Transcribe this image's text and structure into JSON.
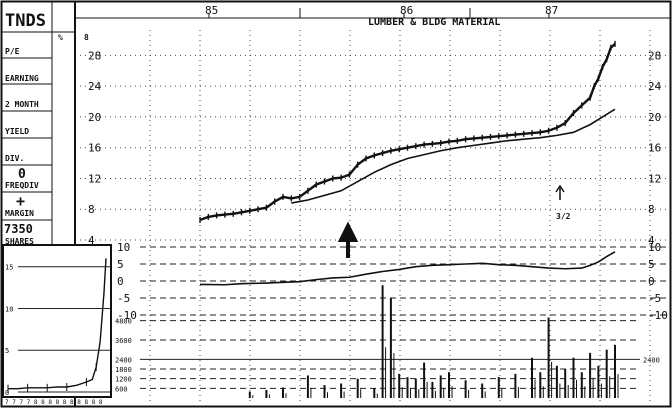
{
  "chart_data": {
    "type": "line",
    "ticker": "TNDS",
    "group": "LUMBER & BLDG MATERIAL",
    "x_years": [
      "85",
      "86",
      "87"
    ],
    "side_labels": {
      "pe": "P/E",
      "earning": "EARNING",
      "month": "2 MONTH",
      "yield": "YIELD",
      "div": "DIV.",
      "div_value": "0",
      "freqdiv": "FREQDIV",
      "plus": "+",
      "margin": "MARGIN",
      "shares_value": "7350",
      "shares": "SHARES",
      "percent_sign": "%"
    },
    "price_axis": {
      "min": 4,
      "max": 30,
      "ticks": [
        "28",
        "24",
        "20",
        "16",
        "12",
        "8",
        "4"
      ],
      "left_top": "8"
    },
    "rs_axis": {
      "ticks": [
        "10",
        "5",
        "0",
        "-5",
        "-10"
      ]
    },
    "volume_axis": {
      "ticks": [
        "4800",
        "3600",
        "2400",
        "1800",
        "1200",
        "600"
      ],
      "right_label": "2400"
    },
    "inset_axis": {
      "ticks": [
        "15",
        "10",
        "5",
        "0"
      ],
      "x_label": "7 7 7 7 8 8 8 8 8 8 8 8 8 8"
    },
    "annotation_split": "3/2",
    "price_series": {
      "name": "",
      "x": [
        0,
        2,
        4,
        6,
        8,
        10,
        12,
        14,
        16,
        18,
        20,
        22,
        24,
        26,
        28,
        30,
        32,
        34,
        36,
        38,
        40,
        42,
        44,
        46,
        48,
        50,
        52,
        54,
        56,
        58,
        60,
        62,
        64,
        66,
        68,
        70,
        72,
        74,
        76,
        78,
        80,
        82,
        84,
        86,
        88,
        90,
        92,
        94,
        95,
        96,
        97,
        98,
        99,
        100
      ],
      "y": [
        6.6,
        7.0,
        7.2,
        7.3,
        7.4,
        7.6,
        7.8,
        8.0,
        8.2,
        9.0,
        9.6,
        9.4,
        9.6,
        10.4,
        11.2,
        11.6,
        12.0,
        12.1,
        12.5,
        13.8,
        14.6,
        15.0,
        15.3,
        15.6,
        15.8,
        16.0,
        16.2,
        16.4,
        16.5,
        16.6,
        16.8,
        16.9,
        17.1,
        17.2,
        17.3,
        17.4,
        17.5,
        17.6,
        17.7,
        17.8,
        17.9,
        18.0,
        18.2,
        18.6,
        19.2,
        20.5,
        21.5,
        22.5,
        24.0,
        25.0,
        26.5,
        27.5,
        29.0,
        29.5
      ]
    },
    "moving_average": {
      "name": "",
      "x": [
        22,
        26,
        30,
        34,
        38,
        42,
        46,
        50,
        54,
        58,
        62,
        66,
        70,
        74,
        78,
        82,
        86,
        90,
        94,
        97,
        100
      ],
      "y": [
        8.8,
        9.2,
        9.8,
        10.4,
        11.6,
        12.8,
        13.8,
        14.6,
        15.1,
        15.6,
        16.0,
        16.3,
        16.6,
        16.9,
        17.1,
        17.3,
        17.6,
        18.0,
        19.0,
        20.0,
        21.0
      ]
    },
    "rs_series": {
      "name": "",
      "x": [
        0,
        6,
        10,
        16,
        20,
        24,
        28,
        32,
        36,
        40,
        44,
        48,
        52,
        56,
        60,
        64,
        68,
        72,
        76,
        80,
        84,
        88,
        92,
        94,
        96,
        98,
        100
      ],
      "y": [
        -1.0,
        -1.1,
        -0.8,
        -0.6,
        -0.4,
        -0.2,
        0.4,
        0.9,
        1.1,
        2.0,
        2.8,
        3.4,
        4.2,
        4.6,
        4.8,
        5.0,
        5.2,
        4.8,
        4.6,
        4.2,
        3.8,
        3.6,
        3.8,
        4.6,
        5.6,
        7.2,
        8.6
      ]
    },
    "volume": {
      "name": "",
      "x": [
        12,
        16,
        20,
        26,
        30,
        34,
        38,
        42,
        44,
        46,
        48,
        50,
        52,
        54,
        56,
        58,
        60,
        64,
        68,
        72,
        76,
        80,
        82,
        84,
        86,
        88,
        90,
        92,
        94,
        96,
        98,
        100
      ],
      "y": [
        400,
        500,
        650,
        1400,
        800,
        900,
        1200,
        600,
        7000,
        6200,
        1500,
        1300,
        1200,
        2200,
        1000,
        1400,
        1600,
        1100,
        900,
        1300,
        1500,
        2500,
        1600,
        5000,
        2000,
        1800,
        2500,
        1600,
        2800,
        2000,
        3000,
        3300
      ]
    },
    "inset_series": {
      "name": "",
      "x": [
        0,
        10,
        20,
        30,
        40,
        50,
        60,
        70,
        80,
        86,
        90,
        94,
        98,
        100
      ],
      "y": [
        0.4,
        0.4,
        0.5,
        0.5,
        0.5,
        0.6,
        0.6,
        0.8,
        1.2,
        1.5,
        3.0,
        6.0,
        12.0,
        16.0
      ]
    }
  }
}
